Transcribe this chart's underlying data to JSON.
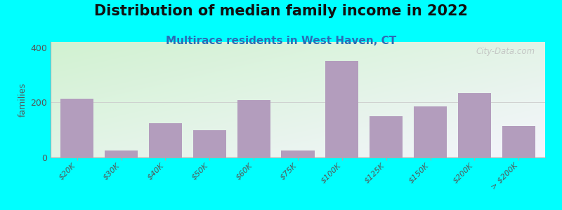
{
  "title": "Distribution of median family income in 2022",
  "subtitle": "Multirace residents in West Haven, CT",
  "ylabel": "families",
  "background_color": "#00FFFF",
  "bar_color": "#b39dbd",
  "bar_edge_color": "#b39dbd",
  "categories": [
    "$20K",
    "$30K",
    "$40K",
    "$50K",
    "$60K",
    "$75K",
    "$100K",
    "$125K",
    "$150K",
    "$200K",
    "> $200K"
  ],
  "values": [
    215,
    25,
    125,
    100,
    210,
    25,
    350,
    150,
    185,
    235,
    115
  ],
  "ylim": [
    0,
    420
  ],
  "yticks": [
    0,
    200,
    400
  ],
  "watermark": "City-Data.com",
  "title_fontsize": 15,
  "subtitle_fontsize": 11,
  "subtitle_color": "#2a6db5",
  "grad_topleft": [
    0.82,
    0.95,
    0.82
  ],
  "grad_botright": [
    0.96,
    0.96,
    0.99
  ]
}
